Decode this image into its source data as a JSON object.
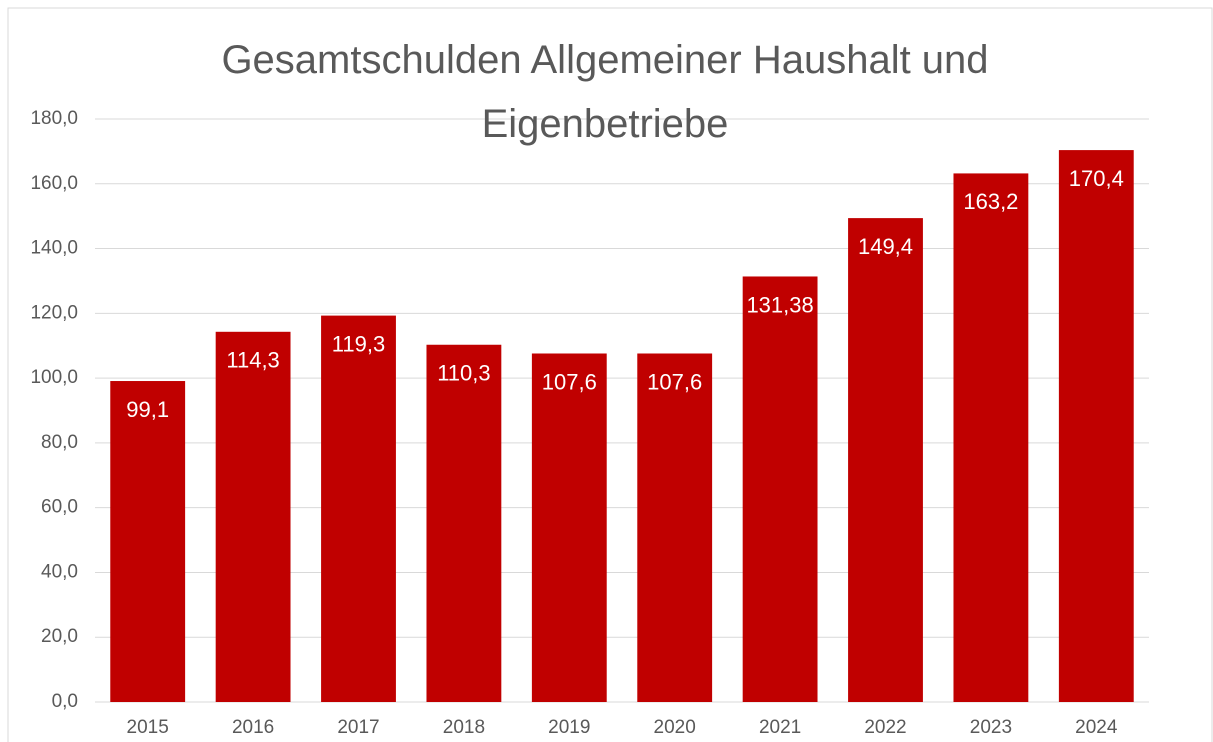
{
  "chart_data": {
    "type": "bar",
    "title": "Gesamtschulden Allgemeiner Haushalt und Eigenbetriebe",
    "categories": [
      "2015",
      "2016",
      "2017",
      "2018",
      "2019",
      "2020",
      "2021",
      "2022",
      "2023",
      "2024"
    ],
    "values": [
      99.1,
      114.3,
      119.3,
      110.3,
      107.6,
      107.6,
      131.38,
      149.4,
      163.2,
      170.4
    ],
    "value_labels": [
      "99,1",
      "114,3",
      "119,3",
      "110,3",
      "107,6",
      "107,6",
      "131,38",
      "149,4",
      "163,2",
      "170,4"
    ],
    "color": "#c00000",
    "ylim": [
      0,
      180
    ],
    "yticks": [
      {
        "value": 0,
        "label": "0,0"
      },
      {
        "value": 20,
        "label": "20,0"
      },
      {
        "value": 40,
        "label": "40,0"
      },
      {
        "value": 60,
        "label": "60,0"
      },
      {
        "value": 80,
        "label": "80,0"
      },
      {
        "value": 100,
        "label": "100,0"
      },
      {
        "value": 120,
        "label": "120,0"
      },
      {
        "value": 140,
        "label": "140,0"
      },
      {
        "value": 160,
        "label": "160,0"
      },
      {
        "value": 180,
        "label": "180,0"
      }
    ],
    "grid": true
  }
}
